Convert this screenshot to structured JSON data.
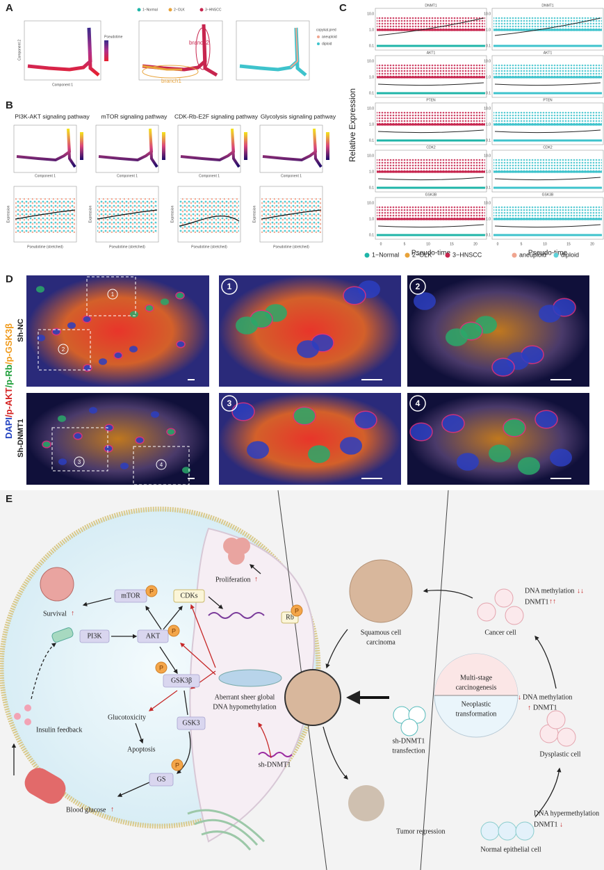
{
  "panels": {
    "A": {
      "label": "A",
      "axis_x": "Component 1",
      "axis_y": "Component 2",
      "pseudotime_title": "Pseudotime",
      "state_legend": [
        {
          "name": "1−Normal",
          "color": "#1fb5a8"
        },
        {
          "name": "2−OLK",
          "color": "#e8a33a"
        },
        {
          "name": "3−HNSCC",
          "color": "#c7254e"
        }
      ],
      "branches": [
        "branch2",
        "branch1"
      ],
      "copykat_title": "copykat.pred",
      "copykat_legend": [
        {
          "name": "aneuploid",
          "color": "#f0a58f"
        },
        {
          "name": "diploid",
          "color": "#3ec3cc"
        }
      ]
    },
    "B": {
      "label": "B",
      "pathways": [
        "PI3K-AKT signaling pathway",
        "mTOR signaling pathway",
        "CDK-Rb-E2F signaling pathway",
        "Glycolysis signaling pathway"
      ],
      "axis_x_top": "Component 1",
      "axis_x": "Pseudotime (stretched)",
      "axis_y": "Expression"
    },
    "C": {
      "label": "C",
      "genes": [
        "DNMT1",
        "AKT1",
        "PTEN",
        "CDK2",
        "GSK3B"
      ],
      "axis_y": "Relative Expression",
      "axis_x": "Pseudo-time",
      "yticks": [
        "10.0",
        "1.0",
        "0.1"
      ],
      "xticks": [
        "0",
        "5",
        "10",
        "15",
        "20"
      ],
      "legend_left": [
        {
          "name": "1−Normal",
          "color": "#1fb5a8"
        },
        {
          "name": "2−OLK",
          "color": "#e8a33a"
        },
        {
          "name": "3−HNSCC",
          "color": "#c7254e"
        }
      ],
      "legend_right": [
        {
          "name": "aneuploid",
          "color": "#f0a58f"
        },
        {
          "name": "diploid",
          "color": "#5ed1d8"
        }
      ]
    },
    "D": {
      "label": "D",
      "stain": [
        {
          "text": "DAPI",
          "color": "#1f3fbf"
        },
        {
          "text": "/p-AKT",
          "color": "#d42020"
        },
        {
          "text": "/p-Rb",
          "color": "#1e9e3a"
        },
        {
          "text": "/p-GSK3β",
          "color": "#f09a1a"
        }
      ],
      "rows": [
        "Sh-NC",
        "Sh-DNMT1"
      ],
      "insets": [
        "1",
        "2",
        "3",
        "4"
      ]
    },
    "E": {
      "label": "E",
      "phospho": "P",
      "up": "↑",
      "down": "↓",
      "double_up": "↑↑",
      "double_down": "↓↓",
      "survival": "Survival",
      "proliferation": "Proliferation",
      "mtor": "mTOR",
      "cdks": "CDKs",
      "akt": "AKT",
      "pi3k": "PI3K",
      "rb": "Rb",
      "gsk3b": "GSK3β",
      "gsk3": "GSK3",
      "gs": "GS",
      "glucotoxicity": "Glucotoxicity",
      "apoptosis": "Apoptosis",
      "insulin_feedback": "Insulin feedback",
      "blood_glucose": "Blood glucose",
      "hypomethylation": [
        "Aberrant sheer global",
        "DNA hypomethylation"
      ],
      "sh_dnmt1": "sh-DNMT1",
      "scc": [
        "Squamous cell",
        "carcinoma"
      ],
      "transfection": [
        "sh-DNMT1",
        "transfection"
      ],
      "tumor_regression": "Tumor regression",
      "multistage": [
        "Multi-stage",
        "carcinogenesis"
      ],
      "neoplastic": [
        "Neoplastic",
        "transformation"
      ],
      "cancer_cell": "Cancer cell",
      "dysplastic_cell": "Dysplastic cell",
      "normal_cell": "Normal epithelial cell",
      "dna_methylation": "DNA methylation",
      "dna_hypermethylation": "DNA hypermethylation",
      "dnmt1": "DNMT1"
    }
  }
}
